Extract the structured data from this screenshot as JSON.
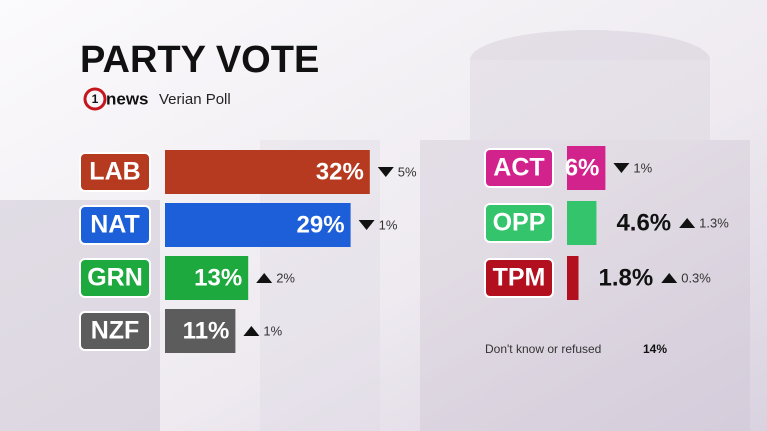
{
  "chart_data": {
    "type": "bar",
    "orientation": "horizontal",
    "title": "PARTY VOTE",
    "logo_number": "1",
    "logo_text": "news",
    "subtitle": "Verian Poll",
    "categories": [
      "LAB",
      "NAT",
      "GRN",
      "NZF",
      "ACT",
      "OPP",
      "TPM"
    ],
    "values": [
      32,
      29,
      13,
      11,
      6,
      4.6,
      1.8
    ],
    "value_labels": [
      "32%",
      "29%",
      "13%",
      "11%",
      "6%",
      "4.6%",
      "1.8%"
    ],
    "colors": [
      "#b63a20",
      "#1c5fd8",
      "#1ea93e",
      "#5c5c5c",
      "#d2238c",
      "#33c46c",
      "#b3101f"
    ],
    "changes": [
      5,
      1,
      2,
      1,
      1,
      1.3,
      0.3
    ],
    "change_directions": [
      "down",
      "down",
      "up",
      "up",
      "down",
      "up",
      "up"
    ],
    "change_labels": [
      "5%",
      "1%",
      "2%",
      "1%",
      "1%",
      "1.3%",
      "0.3%"
    ],
    "note": "Don't know or refused",
    "note_value": 14,
    "note_value_label": "14%"
  }
}
